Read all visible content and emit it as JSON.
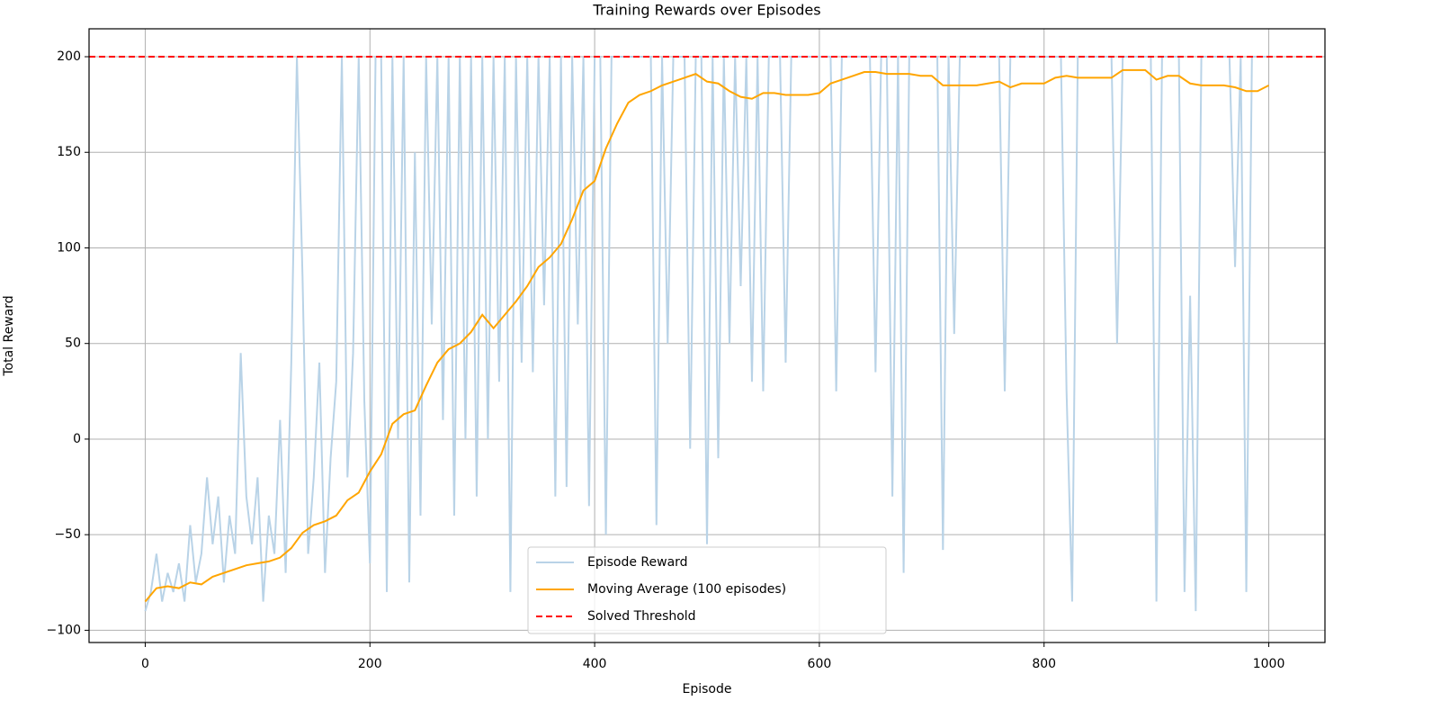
{
  "chart_data": {
    "type": "line",
    "title": "Training Rewards over Episodes",
    "x_label": "Episode",
    "y_label": "Total Reward",
    "xlim": [
      -50,
      1050
    ],
    "ylim": [
      -106.4,
      214.6
    ],
    "xticks": [
      0,
      200,
      400,
      600,
      800,
      1000
    ],
    "yticks": [
      {
        "value": -100,
        "label": "−100"
      },
      {
        "value": -50,
        "label": "−50"
      },
      0,
      50,
      100,
      150,
      200
    ],
    "grid": true,
    "legend": "lower center",
    "series": [
      {
        "name": "Episode Reward",
        "color": "#b9d3e7",
        "x": [
          0,
          5,
          10,
          15,
          20,
          25,
          30,
          35,
          40,
          45,
          50,
          55,
          60,
          65,
          70,
          75,
          80,
          85,
          90,
          95,
          100,
          105,
          110,
          115,
          120,
          125,
          130,
          135,
          140,
          145,
          150,
          155,
          160,
          165,
          170,
          175,
          180,
          185,
          190,
          195,
          200,
          205,
          210,
          215,
          220,
          225,
          230,
          235,
          240,
          245,
          250,
          255,
          260,
          265,
          270,
          275,
          280,
          285,
          290,
          295,
          300,
          305,
          310,
          315,
          320,
          325,
          330,
          335,
          340,
          345,
          350,
          355,
          360,
          365,
          370,
          375,
          380,
          385,
          390,
          395,
          400,
          405,
          410,
          415,
          420,
          425,
          430,
          435,
          440,
          445,
          450,
          455,
          460,
          465,
          470,
          475,
          480,
          485,
          490,
          495,
          500,
          505,
          510,
          515,
          520,
          525,
          530,
          535,
          540,
          545,
          550,
          555,
          560,
          565,
          570,
          575,
          580,
          585,
          590,
          595,
          600,
          605,
          610,
          615,
          620,
          625,
          630,
          635,
          640,
          645,
          650,
          655,
          660,
          665,
          670,
          675,
          680,
          685,
          690,
          695,
          700,
          705,
          710,
          715,
          720,
          725,
          730,
          735,
          740,
          745,
          750,
          755,
          760,
          765,
          770,
          775,
          780,
          785,
          790,
          795,
          800,
          805,
          810,
          815,
          820,
          825,
          830,
          835,
          840,
          845,
          850,
          855,
          860,
          865,
          870,
          875,
          880,
          885,
          890,
          895,
          900,
          905,
          910,
          915,
          920,
          925,
          930,
          935,
          940,
          945,
          950,
          955,
          960,
          965,
          970,
          975,
          980,
          985,
          990,
          995,
          1000
        ],
        "values": [
          -90,
          -80,
          -60,
          -85,
          -70,
          -80,
          -65,
          -85,
          -45,
          -75,
          -60,
          -20,
          -55,
          -30,
          -75,
          -40,
          -60,
          45,
          -30,
          -55,
          -20,
          -85,
          -40,
          -60,
          10,
          -70,
          40,
          200,
          85,
          -60,
          -20,
          40,
          -70,
          -10,
          30,
          200,
          -20,
          45,
          200,
          20,
          -65,
          200,
          200,
          -80,
          200,
          0,
          200,
          -75,
          150,
          -40,
          200,
          60,
          200,
          10,
          200,
          -40,
          200,
          0,
          200,
          -30,
          200,
          0,
          200,
          30,
          200,
          -80,
          200,
          40,
          200,
          35,
          200,
          70,
          200,
          -30,
          200,
          -25,
          200,
          60,
          200,
          -35,
          200,
          200,
          -50,
          200,
          200,
          200,
          200,
          200,
          200,
          200,
          200,
          -45,
          200,
          50,
          200,
          200,
          200,
          -5,
          200,
          200,
          -55,
          200,
          -10,
          200,
          50,
          200,
          80,
          200,
          30,
          200,
          25,
          200,
          200,
          200,
          40,
          200,
          200,
          200,
          200,
          200,
          200,
          200,
          200,
          25,
          200,
          200,
          200,
          200,
          200,
          200,
          35,
          200,
          200,
          -30,
          200,
          -70,
          200,
          200,
          200,
          200,
          200,
          200,
          -58,
          200,
          55,
          200,
          200,
          200,
          200,
          200,
          200,
          200,
          200,
          25,
          200,
          200,
          200,
          200,
          200,
          200,
          200,
          200,
          200,
          200,
          25,
          -85,
          200,
          200,
          200,
          200,
          200,
          200,
          200,
          50,
          200,
          200,
          200,
          200,
          200,
          200,
          -85,
          200,
          200,
          200,
          200,
          -80,
          75,
          -90,
          200,
          200,
          200,
          200,
          200,
          200,
          90,
          200,
          -80,
          200,
          200,
          200,
          200
        ]
      },
      {
        "name": "Moving Average (100 episodes)",
        "color": "#ffa500",
        "x": [
          0,
          10,
          20,
          30,
          40,
          50,
          60,
          70,
          80,
          90,
          100,
          110,
          120,
          130,
          140,
          150,
          160,
          170,
          180,
          190,
          200,
          210,
          220,
          230,
          240,
          250,
          260,
          270,
          280,
          290,
          300,
          310,
          320,
          330,
          340,
          350,
          360,
          370,
          380,
          390,
          400,
          410,
          420,
          430,
          440,
          450,
          460,
          470,
          480,
          490,
          500,
          510,
          520,
          530,
          540,
          550,
          560,
          570,
          580,
          590,
          600,
          610,
          620,
          630,
          640,
          650,
          660,
          670,
          680,
          690,
          700,
          710,
          720,
          730,
          740,
          750,
          760,
          770,
          780,
          790,
          800,
          810,
          820,
          830,
          840,
          850,
          860,
          870,
          880,
          890,
          900,
          910,
          920,
          930,
          940,
          950,
          960,
          970,
          980,
          990,
          1000
        ],
        "values": [
          -85,
          -78,
          -77,
          -78,
          -75,
          -76,
          -72,
          -70,
          -68,
          -66,
          -65,
          -64,
          -62,
          -57,
          -49,
          -45,
          -43,
          -40,
          -32,
          -28,
          -17,
          -8,
          8,
          13,
          15,
          28,
          40,
          47,
          50,
          56,
          65,
          58,
          65,
          72,
          80,
          90,
          95,
          102,
          115,
          130,
          135,
          152,
          165,
          176,
          180,
          182,
          185,
          187,
          189,
          191,
          187,
          186,
          182,
          179,
          178,
          181,
          181,
          180,
          180,
          180,
          181,
          186,
          188,
          190,
          192,
          192,
          191,
          191,
          191,
          190,
          190,
          185,
          185,
          185,
          185,
          186,
          187,
          184,
          186,
          186,
          186,
          189,
          190,
          189,
          189,
          189,
          189,
          193,
          193,
          193,
          188,
          190,
          190,
          186,
          185,
          185,
          185,
          184,
          182,
          182,
          185
        ]
      }
    ],
    "hlines": [
      {
        "name": "Solved Threshold",
        "color": "#ff0000",
        "value": 200
      }
    ]
  }
}
